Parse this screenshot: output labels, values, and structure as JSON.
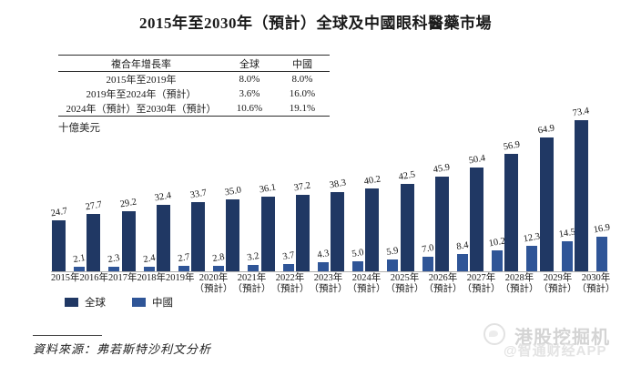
{
  "title": "2015年至2030年（預計）全球及中國眼科醫藥市場",
  "cagr_table": {
    "headers": [
      "複合年增長率",
      "全球",
      "中國"
    ],
    "rows": [
      [
        "2015年至2019年",
        "8.0%",
        "8.0%"
      ],
      [
        "2019年至2024年（預計）",
        "3.6%",
        "16.0%"
      ],
      [
        "2024年（預計）至2030年（預計）",
        "10.6%",
        "19.1%"
      ]
    ]
  },
  "unit_label": "十億美元",
  "chart_data": {
    "type": "bar",
    "title": "2015年至2030年（預計）全球及中國眼科醫藥市場",
    "ylabel": "十億美元",
    "xlabel": "",
    "ylim": [
      0,
      75
    ],
    "grid": false,
    "legend_position": "bottom-left",
    "value_labels": true,
    "forecast_note": "（預計）",
    "categories": [
      "2015年",
      "2016年",
      "2017年",
      "2018年",
      "2019年",
      "2020年（預計）",
      "2021年（預計）",
      "2022年（預計）",
      "2023年（預計）",
      "2024年（預計）",
      "2025年（預計）",
      "2026年（預計）",
      "2027年（預計）",
      "2028年（預計）",
      "2029年（預計）",
      "2030年（預計）"
    ],
    "series": [
      {
        "name": "全球",
        "color": "#203864",
        "values": [
          24.7,
          27.7,
          29.2,
          32.4,
          33.7,
          35.0,
          36.1,
          37.2,
          38.3,
          40.2,
          42.5,
          45.9,
          50.4,
          56.9,
          64.9,
          73.4
        ]
      },
      {
        "name": "中國",
        "color": "#2f5597",
        "values": [
          2.1,
          2.3,
          2.4,
          2.7,
          2.8,
          3.2,
          3.7,
          4.3,
          5.0,
          5.9,
          7.0,
          8.4,
          10.2,
          12.3,
          14.5,
          16.9
        ]
      }
    ]
  },
  "legend": [
    {
      "label": "全球",
      "color": "#203864"
    },
    {
      "label": "中國",
      "color": "#2f5597"
    }
  ],
  "source": "資料來源：弗若斯特沙利文分析",
  "watermark": {
    "brand": "港股挖掘机",
    "handle": "@智通财经APP"
  },
  "colors": {
    "axis": "#b0b0b0",
    "global_bar": "#203864",
    "china_bar": "#2f5597"
  }
}
